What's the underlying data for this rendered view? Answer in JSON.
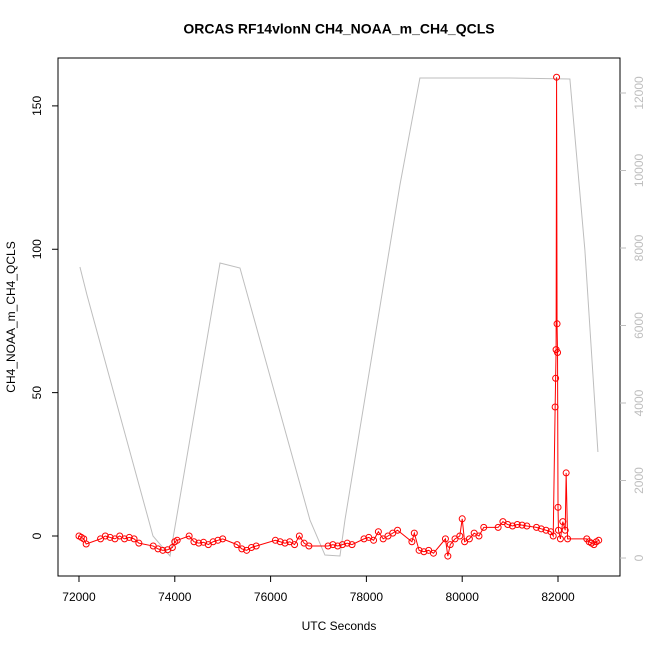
{
  "chart_data": {
    "type": "line",
    "title": "ORCAS RF14vlonN CH4_NOAA_m_CH4_QCLS",
    "x_label": "UTC Seconds",
    "y_label": "CH4_NOAA_m_CH4_QCLS",
    "xlim": [
      71562,
      83294
    ],
    "xticks": [
      72000,
      74000,
      76000,
      78000,
      80000,
      82000
    ],
    "ylim": [
      -13.95,
      166.7
    ],
    "yticks": [
      0,
      50,
      100,
      150
    ],
    "y2lim": [
      -464,
      12903
    ],
    "y2ticks": [
      0,
      2000,
      4000,
      6000,
      8000,
      10000,
      12000
    ],
    "series": [
      {
        "color": "#ff0000",
        "markers": true,
        "x": [
          72000,
          72050,
          72100,
          72150,
          72450,
          72550,
          72650,
          72750,
          72850,
          72950,
          73050,
          73150,
          73250,
          73550,
          73650,
          73750,
          73850,
          73950,
          74000,
          74050,
          74300,
          74400,
          74500,
          74600,
          74700,
          74800,
          74900,
          75000,
          75300,
          75400,
          75500,
          75600,
          75700,
          76100,
          76200,
          76300,
          76400,
          76500,
          76600,
          76700,
          76800,
          77200,
          77300,
          77400,
          77500,
          77600,
          77700,
          77950,
          78050,
          78150,
          78250,
          78350,
          78450,
          78550,
          78650,
          78950,
          79000,
          79100,
          79200,
          79300,
          79400,
          79650,
          79700,
          79750,
          79850,
          79950,
          80000,
          80050,
          80150,
          80250,
          80350,
          80450,
          80750,
          80850,
          80950,
          81050,
          81150,
          81250,
          81350,
          81550,
          81650,
          81750,
          81850,
          81900,
          81940,
          81950,
          81960,
          81970,
          81980,
          81990,
          82000,
          82010,
          82050,
          82100,
          82150,
          82170,
          82200,
          82600,
          82650,
          82700,
          82750,
          82800,
          82850
        ],
        "values": [
          0,
          -0.5,
          -1,
          -2.8,
          -1,
          0,
          -0.5,
          -1,
          0,
          -1,
          -0.5,
          -1,
          -2.5,
          -3.5,
          -4.5,
          -5,
          -4.8,
          -4,
          -2,
          -1.5,
          0,
          -2,
          -2.5,
          -2.2,
          -3,
          -2,
          -1.5,
          -1,
          -3,
          -4.5,
          -5,
          -4,
          -3.5,
          -1.5,
          -2,
          -2.5,
          -2,
          -3,
          0,
          -2.5,
          -3.5,
          -3.5,
          -3,
          -3.5,
          -3,
          -2.5,
          -3,
          -1,
          -0.5,
          -1.5,
          1.5,
          -1,
          0,
          1,
          2,
          -2,
          1,
          -5,
          -5.5,
          -5,
          -6,
          -1,
          -7,
          -3,
          -1,
          0,
          6,
          -2,
          -1,
          1,
          0,
          3,
          3,
          5,
          4,
          3.5,
          4,
          3.8,
          3.5,
          3,
          2.5,
          2,
          1.5,
          0,
          45,
          55,
          65,
          160,
          74,
          64,
          10,
          2,
          -1,
          5,
          2,
          22,
          -1,
          -1,
          -2,
          -2.5,
          -3,
          -2,
          -1.5
        ]
      },
      {
        "color": "#bebebe",
        "axis": "y2",
        "markers": false,
        "x": [
          72020,
          72167,
          73545,
          73900,
          74944,
          75361,
          76822,
          77135,
          77448,
          77552,
          78700,
          79117,
          80996,
          82248,
          82561,
          82833
        ],
        "values": [
          7510,
          6787,
          568,
          52,
          7613,
          7484,
          980,
          77,
          52,
          980,
          9626,
          12387,
          12387,
          12361,
          7948,
          2735
        ]
      }
    ]
  }
}
